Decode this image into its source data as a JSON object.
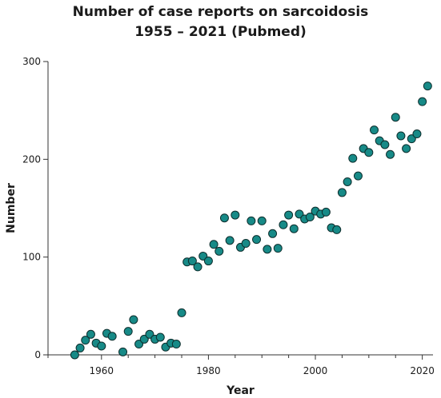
{
  "colors": {
    "marker_fill": "#178a87",
    "marker_stroke": "#0d2e2d",
    "axis": "#333333",
    "text": "#1a1a1a"
  },
  "chart_data": {
    "type": "scatter",
    "title": "Number of case reports on sarcoidosis",
    "subtitle": "1955 – 2021 (Pubmed)",
    "xlabel": "Year",
    "ylabel": "Number",
    "xlim": [
      1950,
      2022
    ],
    "ylim": [
      0,
      300
    ],
    "x_ticks": [
      1960,
      1980,
      2000,
      2020
    ],
    "y_ticks": [
      0,
      100,
      200,
      300
    ],
    "grid": false,
    "legend": "none",
    "x": [
      1955,
      1956,
      1957,
      1958,
      1959,
      1960,
      1961,
      1962,
      1964,
      1965,
      1966,
      1967,
      1968,
      1969,
      1970,
      1971,
      1972,
      1973,
      1974,
      1975,
      1976,
      1977,
      1978,
      1979,
      1980,
      1981,
      1982,
      1983,
      1984,
      1985,
      1986,
      1987,
      1988,
      1989,
      1990,
      1991,
      1992,
      1993,
      1994,
      1995,
      1996,
      1997,
      1998,
      1999,
      2000,
      2001,
      2002,
      2003,
      2004,
      2005,
      2006,
      2007,
      2008,
      2009,
      2010,
      2011,
      2012,
      2013,
      2014,
      2015,
      2016,
      2017,
      2018,
      2019,
      2020,
      2021
    ],
    "y": [
      0,
      7,
      15,
      21,
      12,
      9,
      22,
      19,
      3,
      24,
      36,
      11,
      16,
      21,
      16,
      18,
      8,
      12,
      11,
      43,
      95,
      96,
      90,
      101,
      96,
      113,
      106,
      140,
      117,
      143,
      110,
      114,
      137,
      118,
      137,
      108,
      124,
      109,
      133,
      143,
      129,
      144,
      139,
      141,
      147,
      144,
      146,
      130,
      128,
      166,
      177,
      201,
      183,
      211,
      207,
      230,
      219,
      215,
      205,
      243,
      224,
      211,
      221,
      226,
      259,
      275
    ]
  }
}
